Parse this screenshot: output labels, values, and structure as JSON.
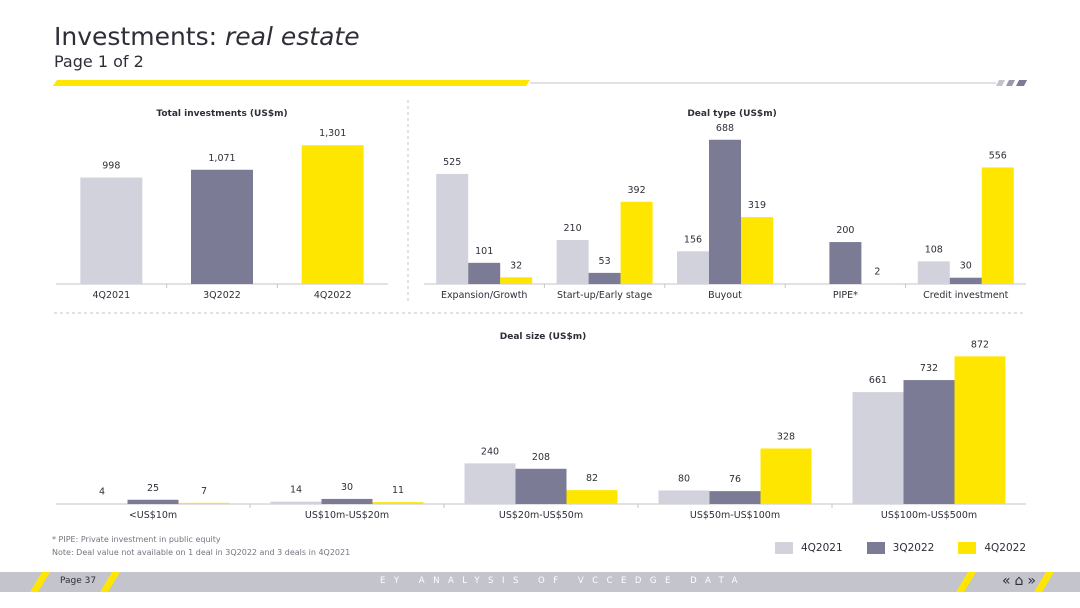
{
  "header": {
    "title_main": "Investments: ",
    "title_em": "real estate",
    "subtitle": "Page 1 of 2"
  },
  "colors": {
    "q4_2021": "#d2d2dc",
    "q3_2022": "#7b7b96",
    "q4_2022": "#ffe600",
    "accent": "#ffe600",
    "text": "#2e2e38"
  },
  "legend": {
    "items": [
      "4Q2021",
      "3Q2022",
      "4Q2022"
    ]
  },
  "footnotes": {
    "pipe": "* PIPE: Private investment in public equity",
    "note": "Note: Deal value not available on 1 deal in 3Q2022 and 3 deals in 4Q2021"
  },
  "footer": {
    "page": "Page 37",
    "tagline": "EY ANALYSIS OF VCCEDGE DATA",
    "nav_prev": "«",
    "nav_home": "⌂",
    "nav_next": "»"
  },
  "chart_data": [
    {
      "type": "bar",
      "title": "Total investments (US$m)",
      "categories": [
        "4Q2021",
        "3Q2022",
        "4Q2022"
      ],
      "values": [
        998,
        1071,
        1301
      ],
      "value_labels": [
        "998",
        "1,071",
        "1,301"
      ],
      "ylim": [
        0,
        1650
      ]
    },
    {
      "type": "bar",
      "title": "Deal type (US$m)",
      "categories": [
        "Expansion/Growth",
        "Start-up/Early stage",
        "Buyout",
        "PIPE*",
        "Credit investment"
      ],
      "series": [
        {
          "name": "4Q2021",
          "values": [
            525,
            210,
            156,
            null,
            108
          ],
          "labels": [
            "525",
            "210",
            "156",
            "",
            "108"
          ]
        },
        {
          "name": "3Q2022",
          "values": [
            101,
            53,
            688,
            200,
            30
          ],
          "labels": [
            "101",
            "53",
            "688",
            "200",
            "30"
          ]
        },
        {
          "name": "4Q2022",
          "values": [
            32,
            392,
            319,
            2,
            556
          ],
          "labels": [
            "32",
            "392",
            "319",
            "2",
            "556"
          ]
        }
      ],
      "ylim": [
        0,
        830
      ]
    },
    {
      "type": "bar",
      "title": "Deal size (US$m)",
      "categories": [
        "<US$10m",
        "US$10m-US$20m",
        "US$20m-US$50m",
        "US$50m-US$100m",
        "US$100m-US$500m"
      ],
      "series": [
        {
          "name": "4Q2021",
          "values": [
            4,
            14,
            240,
            80,
            661
          ],
          "labels": [
            "4",
            "14",
            "240",
            "80",
            "661"
          ]
        },
        {
          "name": "3Q2022",
          "values": [
            25,
            30,
            208,
            76,
            732
          ],
          "labels": [
            "25",
            "30",
            "208",
            "76",
            "732"
          ]
        },
        {
          "name": "4Q2022",
          "values": [
            7,
            11,
            82,
            328,
            872
          ],
          "labels": [
            "7",
            "11",
            "82",
            "328",
            "872"
          ]
        }
      ],
      "ylim": [
        0,
        1010
      ]
    }
  ]
}
